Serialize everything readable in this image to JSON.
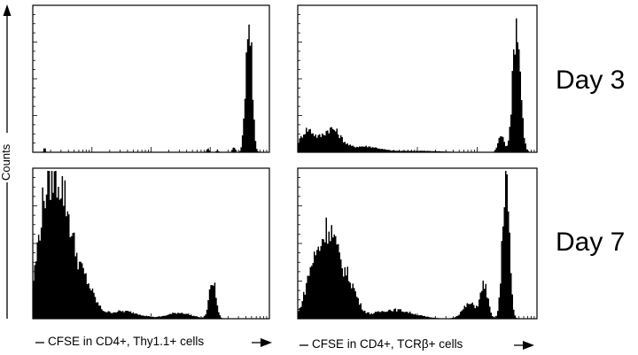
{
  "y_axis_label": "Counts",
  "row_labels": [
    "Day 3",
    "Day 7"
  ],
  "column_xlabels": [
    "CFSE in CD4+, Thy1.1+ cells",
    "CFSE in CD4+, TCRβ+ cells"
  ],
  "chart_data": [
    {
      "type": "histogram",
      "row": "Day 3",
      "xlabel": "CFSE in CD4+, Thy1.1+ cells",
      "ylabel": "Counts",
      "x_scale": "log",
      "ylim": [
        0,
        100
      ],
      "peaks": [
        {
          "x": 0.05,
          "height": 3,
          "width": 0.004
        },
        {
          "x": 0.74,
          "height": 3,
          "width": 0.005
        },
        {
          "x": 0.78,
          "height": 2,
          "width": 0.004
        },
        {
          "x": 0.85,
          "height": 4,
          "width": 0.006
        },
        {
          "x": 0.895,
          "height": 12,
          "width": 0.008
        },
        {
          "x": 0.915,
          "height": 95,
          "width": 0.012
        }
      ]
    },
    {
      "type": "histogram",
      "row": "Day 3",
      "xlabel": "CFSE in CD4+, TCRβ+ cells",
      "ylabel": "Counts",
      "x_scale": "log",
      "ylim": [
        0,
        100
      ],
      "peaks": [
        {
          "x": 0.04,
          "height": 15,
          "width": 0.03
        },
        {
          "x": 0.14,
          "height": 16,
          "width": 0.04
        },
        {
          "x": 0.28,
          "height": 4,
          "width": 0.06
        },
        {
          "x": 0.5,
          "height": 1,
          "width": 0.1
        },
        {
          "x": 0.85,
          "height": 12,
          "width": 0.012
        },
        {
          "x": 0.915,
          "height": 90,
          "width": 0.016
        }
      ]
    },
    {
      "type": "histogram",
      "row": "Day 7",
      "xlabel": "CFSE in CD4+, Thy1.1+ cells",
      "ylabel": "Counts",
      "x_scale": "log",
      "ylim": [
        0,
        100
      ],
      "peaks": [
        {
          "x": 0.05,
          "height": 60,
          "width": 0.035
        },
        {
          "x": 0.12,
          "height": 82,
          "width": 0.045
        },
        {
          "x": 0.22,
          "height": 22,
          "width": 0.04
        },
        {
          "x": 0.38,
          "height": 5,
          "width": 0.07
        },
        {
          "x": 0.62,
          "height": 4,
          "width": 0.05
        },
        {
          "x": 0.76,
          "height": 26,
          "width": 0.014
        }
      ]
    },
    {
      "type": "histogram",
      "row": "Day 7",
      "xlabel": "CFSE in CD4+, TCRβ+ cells",
      "ylabel": "Counts",
      "x_scale": "log",
      "ylim": [
        0,
        100
      ],
      "peaks": [
        {
          "x": 0.06,
          "height": 30,
          "width": 0.03
        },
        {
          "x": 0.13,
          "height": 58,
          "width": 0.035
        },
        {
          "x": 0.21,
          "height": 25,
          "width": 0.035
        },
        {
          "x": 0.4,
          "height": 6,
          "width": 0.08
        },
        {
          "x": 0.72,
          "height": 10,
          "width": 0.03
        },
        {
          "x": 0.78,
          "height": 22,
          "width": 0.015
        },
        {
          "x": 0.87,
          "height": 98,
          "width": 0.014
        }
      ]
    }
  ]
}
